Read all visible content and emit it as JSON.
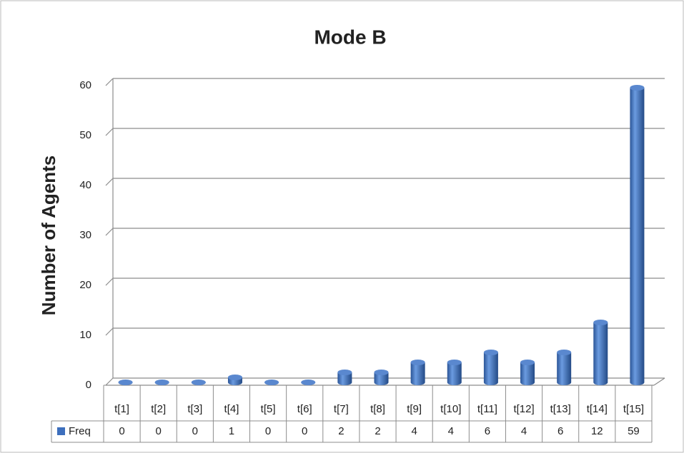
{
  "chart_data": {
    "type": "bar",
    "title": "Mode B",
    "y_label": "Number of Agents",
    "categories": [
      "t[1]",
      "t[2]",
      "t[3]",
      "t[4]",
      "t[5]",
      "t[6]",
      "t[7]",
      "t[8]",
      "t[9]",
      "t[10]",
      "t[11]",
      "t[12]",
      "t[13]",
      "t[14]",
      "t[15]"
    ],
    "series": [
      {
        "name": "Freq",
        "color": "#3d6fbd",
        "values": [
          0,
          0,
          0,
          1,
          0,
          0,
          2,
          2,
          4,
          4,
          6,
          4,
          6,
          12,
          59
        ]
      }
    ],
    "ylim": [
      0,
      60
    ],
    "yticks": [
      0,
      10,
      20,
      30,
      40,
      50,
      60
    ],
    "grid": true,
    "legend": "table"
  }
}
